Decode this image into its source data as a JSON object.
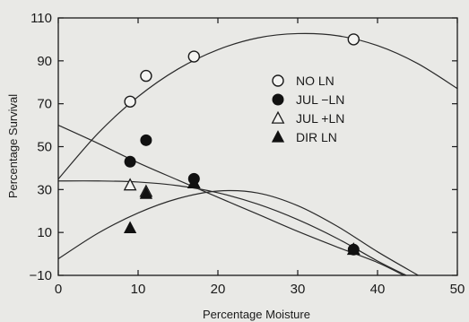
{
  "chart_data": {
    "type": "scatter",
    "title": "",
    "xlabel": "Percentage Moisture",
    "ylabel": "Percentage Survival",
    "xlim": [
      0,
      50
    ],
    "ylim": [
      -10,
      110
    ],
    "xticks": [
      0,
      10,
      20,
      30,
      40,
      50
    ],
    "yticks": [
      -10,
      10,
      30,
      50,
      70,
      90,
      110
    ],
    "grid": false,
    "legend_position": "right",
    "series": [
      {
        "name": "NO LN",
        "marker": "open-circle",
        "points": [
          [
            9,
            71
          ],
          [
            11,
            83
          ],
          [
            17,
            92
          ],
          [
            37,
            100
          ]
        ],
        "curve": [
          [
            0,
            34.9
          ],
          [
            5,
            56.3
          ],
          [
            10,
            73.3
          ],
          [
            15,
            86.2
          ],
          [
            20,
            95.2
          ],
          [
            25,
            100.7
          ],
          [
            30,
            102.7
          ],
          [
            35,
            101.7
          ],
          [
            40,
            97.1
          ],
          [
            45,
            88.8
          ],
          [
            50,
            77.1
          ]
        ]
      },
      {
        "name": "JUL −LN",
        "marker": "filled-circle",
        "points": [
          [
            9,
            43
          ],
          [
            11,
            53
          ],
          [
            17,
            35
          ],
          [
            37,
            2
          ]
        ],
        "curve": [
          [
            0,
            60
          ],
          [
            5,
            51.5
          ],
          [
            10,
            42.5
          ],
          [
            15,
            34.4
          ],
          [
            20,
            26.4
          ],
          [
            25,
            18.5
          ],
          [
            30,
            10.5
          ],
          [
            35,
            3.1
          ],
          [
            40,
            -4
          ],
          [
            43.3,
            -10
          ]
        ]
      },
      {
        "name": "JUL +LN",
        "marker": "open-triangle",
        "points": [
          [
            9,
            32
          ],
          [
            11,
            29
          ],
          [
            17,
            33
          ],
          [
            37,
            2
          ]
        ],
        "curve": [
          [
            0,
            34
          ],
          [
            5,
            34
          ],
          [
            10,
            33.5
          ],
          [
            15,
            31.8
          ],
          [
            20,
            28.5
          ],
          [
            25,
            23.2
          ],
          [
            30,
            16
          ],
          [
            35,
            7.1
          ],
          [
            40,
            -3.3
          ],
          [
            43.6,
            -10
          ]
        ]
      },
      {
        "name": "DIR LN",
        "marker": "filled-triangle",
        "points": [
          [
            9,
            12
          ],
          [
            11,
            28
          ],
          [
            17,
            33
          ],
          [
            37,
            2
          ]
        ],
        "curve": [
          [
            0,
            -2.3
          ],
          [
            5,
            9.7
          ],
          [
            10,
            19.1
          ],
          [
            15,
            25.8
          ],
          [
            20,
            29.3
          ],
          [
            25,
            28.4
          ],
          [
            30,
            22.5
          ],
          [
            35,
            12.8
          ],
          [
            40,
            1
          ],
          [
            45.1,
            -10
          ]
        ]
      }
    ]
  }
}
